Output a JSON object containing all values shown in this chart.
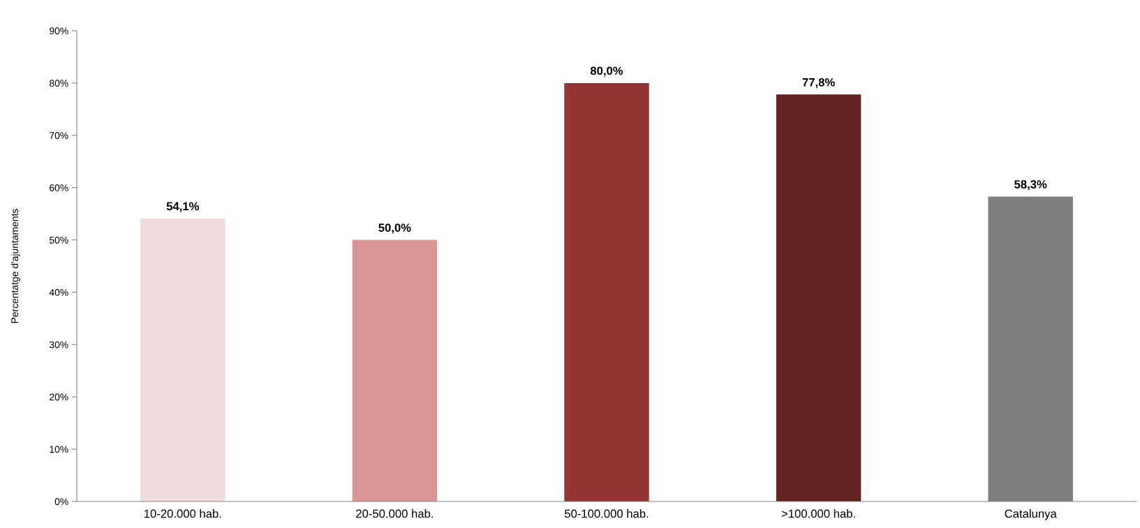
{
  "chart_data": {
    "type": "bar",
    "ylabel": "Percentatge d'ajuntaments",
    "categories": [
      "10-20.000 hab.",
      "20-50.000 hab.",
      "50-100.000 hab.",
      ">100.000 hab.",
      "Catalunya"
    ],
    "values": [
      54.1,
      50.0,
      80.0,
      77.8,
      58.3
    ],
    "colors": [
      "#f0dcdc",
      "#d99595",
      "#943535",
      "#632323",
      "#7f7f7f"
    ],
    "value_labels": [
      "54,1%",
      "50,0%",
      "80,0%",
      "77,8%",
      "58,3%"
    ],
    "ylim": [
      0,
      90
    ],
    "yticks": [
      {
        "value": 0,
        "label": "0%"
      },
      {
        "value": 10,
        "label": "10%"
      },
      {
        "value": 20,
        "label": "20%"
      },
      {
        "value": 30,
        "label": "30%"
      },
      {
        "value": 40,
        "label": "40%"
      },
      {
        "value": 50,
        "label": "50%"
      },
      {
        "value": 60,
        "label": "60%"
      },
      {
        "value": 70,
        "label": "70%"
      },
      {
        "value": 80,
        "label": "80%"
      },
      {
        "value": 90,
        "label": "90%"
      }
    ],
    "grid": false,
    "legend": false
  }
}
